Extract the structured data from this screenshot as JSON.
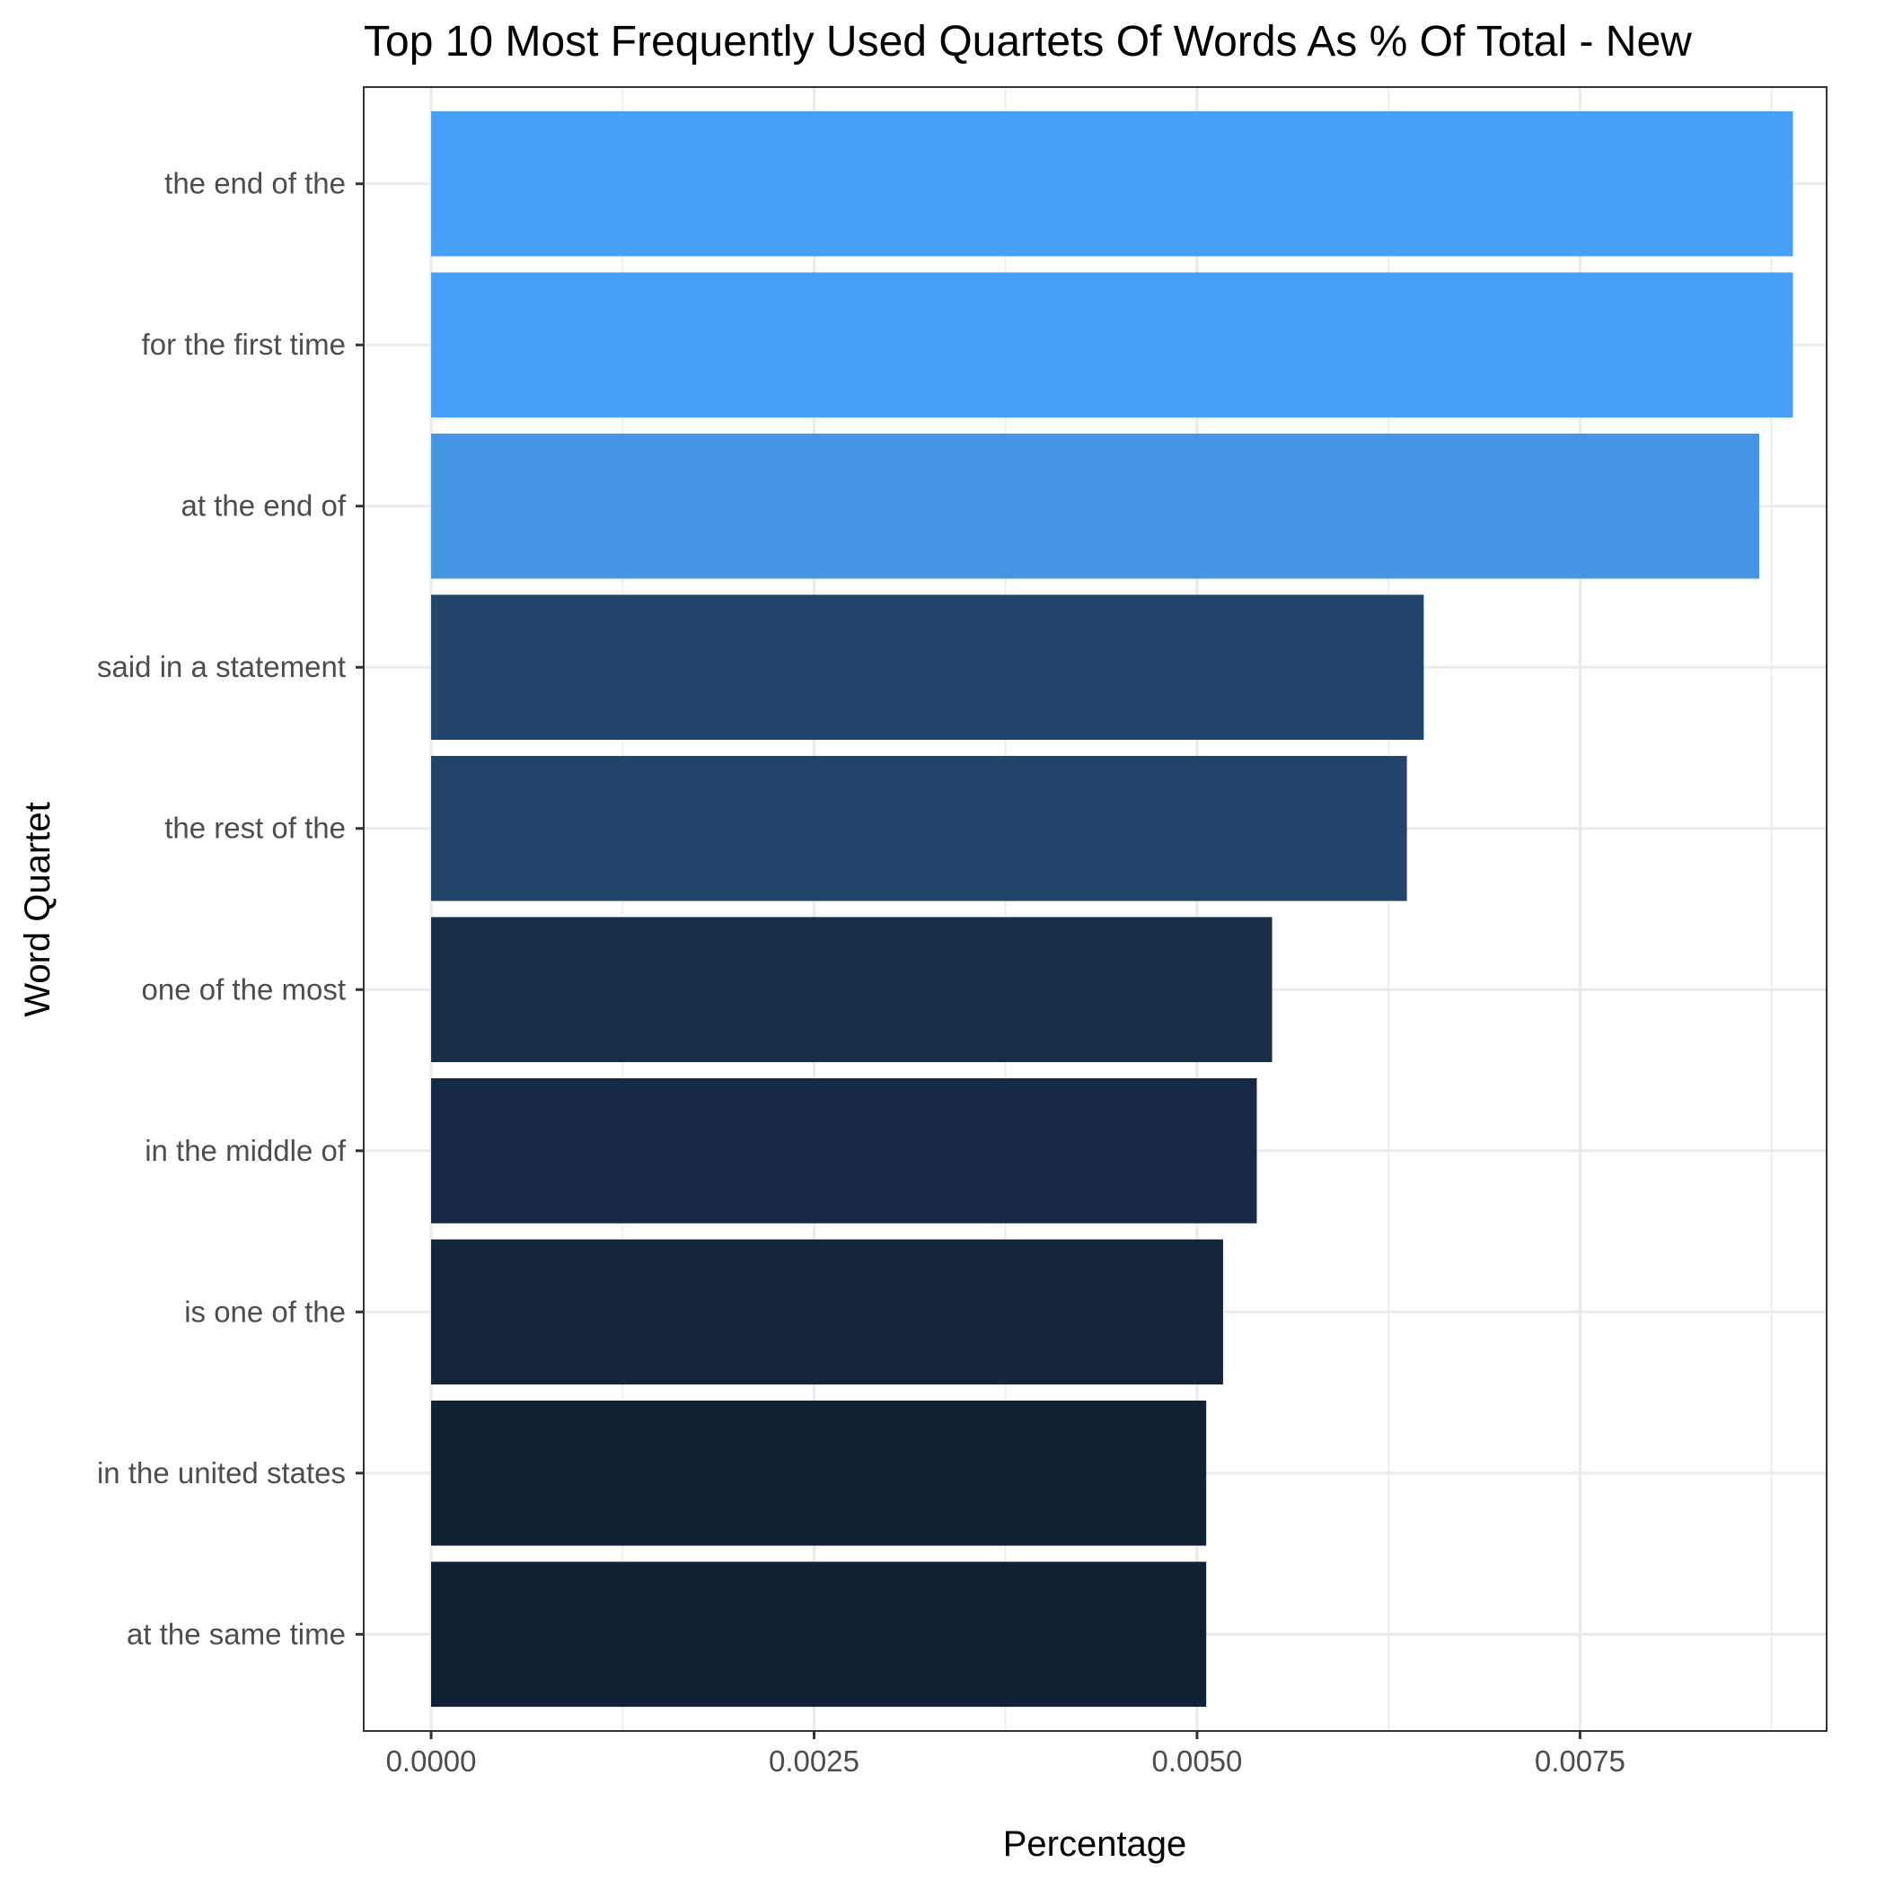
{
  "chart_data": {
    "type": "bar",
    "orientation": "horizontal",
    "title": "Top 10 Most Frequently Used Quartets Of Words As % Of Total - New",
    "xlabel": "Percentage",
    "ylabel": "Word Quartet",
    "categories": [
      "the end of the",
      "for the first time",
      "at the end of",
      "said in a statement",
      "the rest of the",
      "one of the most",
      "in the middle of",
      "is one of the",
      "in the united states",
      "at the same time"
    ],
    "values": [
      0.00889,
      0.00889,
      0.00867,
      0.00648,
      0.00637,
      0.00549,
      0.00539,
      0.00517,
      0.00506,
      0.00506
    ],
    "colors": [
      "#489ff6",
      "#489ff6",
      "#4496e4",
      "#22466b",
      "#22436a",
      "#182d46",
      "#162944",
      "#14243b",
      "#112133",
      "#112133"
    ],
    "xlim": [
      -0.00044,
      0.00911
    ],
    "x_ticks": [
      0.0,
      0.0025,
      0.005,
      0.0075
    ],
    "x_tick_labels": [
      "0.0000",
      "0.0025",
      "0.0050",
      "0.0075"
    ],
    "grid": true,
    "legend": "none"
  }
}
